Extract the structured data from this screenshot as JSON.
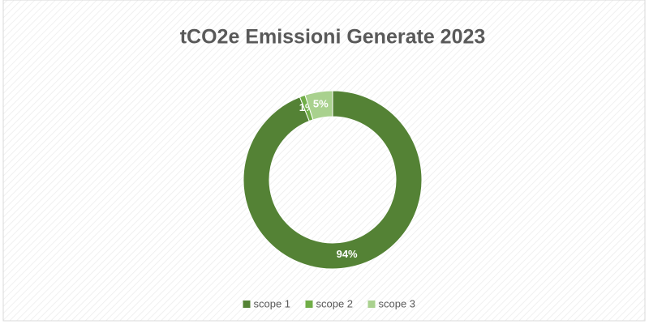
{
  "chart_data": {
    "type": "donut",
    "title": "tCO2e Emissioni Generate 2023",
    "categories": [
      "scope 1",
      "scope 2",
      "scope 3"
    ],
    "values": [
      94,
      1,
      5
    ],
    "value_labels": [
      "94%",
      "1%",
      "5%"
    ],
    "colors": [
      "#548235",
      "#70ad47",
      "#a9d18e"
    ],
    "legend": "bottom"
  }
}
